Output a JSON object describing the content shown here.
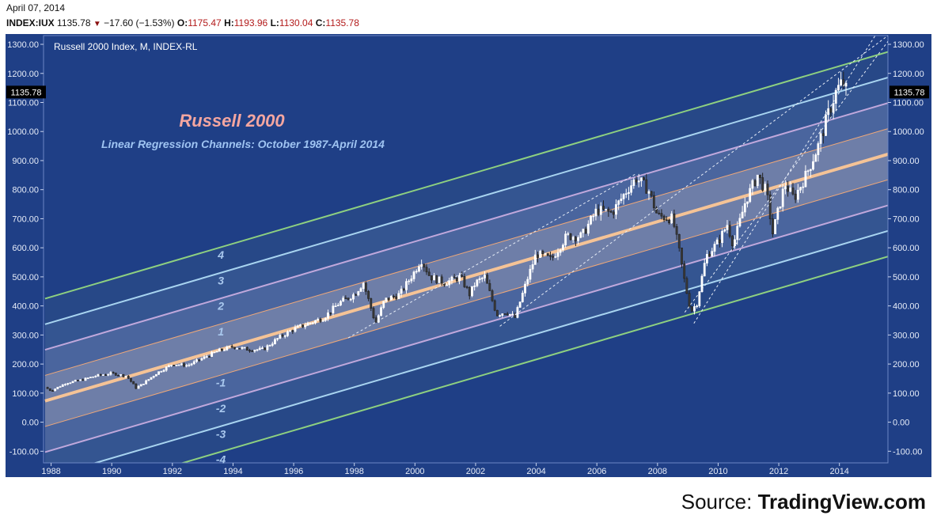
{
  "header": {
    "date": "April 07, 2014",
    "symbol": "INDEX:IUX",
    "last": "1135.78",
    "change": "−17.60 (−1.53%)",
    "o_label": "O:",
    "o_value": "1175.47",
    "h_label": "H:",
    "h_value": "1193.96",
    "l_label": "L:",
    "l_value": "1130.04",
    "c_label": "C:",
    "c_value": "1135.78"
  },
  "source": {
    "label": "Source:",
    "site": "TradingView.com"
  },
  "colors": {
    "background": "#1f3f86",
    "midline": "#f5c396",
    "band1": "#f0a878",
    "band2": "#c0a8dc",
    "band3": "#a8d4f0",
    "band4": "#8ed080",
    "price_badge": "#000000"
  },
  "chart_data": {
    "type": "candlestick",
    "title": "Russell 2000",
    "subtitle": "Linear Regression Channels: October 1987-April 2014",
    "panel_title": "Russell 2000 Index, M, INDEX-RL",
    "x_ticks": [
      "1988",
      "1990",
      "1992",
      "1994",
      "1996",
      "1998",
      "2000",
      "2002",
      "2004",
      "2006",
      "2008",
      "2010",
      "2012",
      "2014"
    ],
    "y_ticks": [
      "1300.00",
      "1200.00",
      "1100.00",
      "1000.00",
      "900.00",
      "800.00",
      "700.00",
      "600.00",
      "500.00",
      "400.00",
      "300.00",
      "200.00",
      "100.00",
      "0.00",
      "-100.00"
    ],
    "ylim": [
      -140,
      1330
    ],
    "xlim": [
      1987.75,
      2015.6
    ],
    "last_price_label": "1135.78",
    "regression": {
      "start_year": 1987.8,
      "start_value": 73,
      "end_year": 2015.6,
      "end_value": 922,
      "band_step": 88
    },
    "band_labels": [
      "4",
      "3",
      "2",
      "1",
      "-1",
      "-2",
      "-3",
      "-4"
    ],
    "closes": [
      {
        "t": 1987.8,
        "v": 120
      },
      {
        "t": 1988.0,
        "v": 108
      },
      {
        "t": 1988.5,
        "v": 135
      },
      {
        "t": 1989.0,
        "v": 145
      },
      {
        "t": 1989.5,
        "v": 160
      },
      {
        "t": 1990.0,
        "v": 168
      },
      {
        "t": 1990.5,
        "v": 158
      },
      {
        "t": 1990.8,
        "v": 118
      },
      {
        "t": 1991.0,
        "v": 130
      },
      {
        "t": 1991.5,
        "v": 170
      },
      {
        "t": 1992.0,
        "v": 200
      },
      {
        "t": 1992.5,
        "v": 195
      },
      {
        "t": 1993.0,
        "v": 220
      },
      {
        "t": 1993.5,
        "v": 245
      },
      {
        "t": 1994.0,
        "v": 260
      },
      {
        "t": 1994.5,
        "v": 250
      },
      {
        "t": 1995.0,
        "v": 250
      },
      {
        "t": 1995.5,
        "v": 290
      },
      {
        "t": 1996.0,
        "v": 320
      },
      {
        "t": 1996.5,
        "v": 340
      },
      {
        "t": 1997.0,
        "v": 360
      },
      {
        "t": 1997.5,
        "v": 410
      },
      {
        "t": 1998.0,
        "v": 440
      },
      {
        "t": 1998.3,
        "v": 480
      },
      {
        "t": 1998.7,
        "v": 340
      },
      {
        "t": 1999.0,
        "v": 420
      },
      {
        "t": 1999.5,
        "v": 440
      },
      {
        "t": 2000.0,
        "v": 520
      },
      {
        "t": 2000.2,
        "v": 560
      },
      {
        "t": 2000.5,
        "v": 500
      },
      {
        "t": 2001.0,
        "v": 480
      },
      {
        "t": 2001.5,
        "v": 500
      },
      {
        "t": 2001.8,
        "v": 440
      },
      {
        "t": 2002.0,
        "v": 480
      },
      {
        "t": 2002.3,
        "v": 500
      },
      {
        "t": 2002.7,
        "v": 370
      },
      {
        "t": 2003.0,
        "v": 380
      },
      {
        "t": 2003.3,
        "v": 360
      },
      {
        "t": 2003.7,
        "v": 490
      },
      {
        "t": 2004.0,
        "v": 580
      },
      {
        "t": 2004.5,
        "v": 560
      },
      {
        "t": 2005.0,
        "v": 640
      },
      {
        "t": 2005.5,
        "v": 640
      },
      {
        "t": 2006.0,
        "v": 730
      },
      {
        "t": 2006.5,
        "v": 720
      },
      {
        "t": 2007.0,
        "v": 800
      },
      {
        "t": 2007.3,
        "v": 840
      },
      {
        "t": 2007.7,
        "v": 800
      },
      {
        "t": 2008.0,
        "v": 710
      },
      {
        "t": 2008.5,
        "v": 700
      },
      {
        "t": 2008.75,
        "v": 570
      },
      {
        "t": 2008.9,
        "v": 480
      },
      {
        "t": 2009.1,
        "v": 380
      },
      {
        "t": 2009.3,
        "v": 410
      },
      {
        "t": 2009.6,
        "v": 570
      },
      {
        "t": 2010.0,
        "v": 620
      },
      {
        "t": 2010.3,
        "v": 680
      },
      {
        "t": 2010.5,
        "v": 610
      },
      {
        "t": 2010.9,
        "v": 760
      },
      {
        "t": 2011.3,
        "v": 850
      },
      {
        "t": 2011.6,
        "v": 790
      },
      {
        "t": 2011.8,
        "v": 650
      },
      {
        "t": 2012.2,
        "v": 820
      },
      {
        "t": 2012.5,
        "v": 770
      },
      {
        "t": 2012.9,
        "v": 850
      },
      {
        "t": 2013.3,
        "v": 950
      },
      {
        "t": 2013.6,
        "v": 1050
      },
      {
        "t": 2013.9,
        "v": 1140
      },
      {
        "t": 2014.1,
        "v": 1170
      },
      {
        "t": 2014.25,
        "v": 1136
      }
    ],
    "trendlines": [
      {
        "t1": 1997.8,
        "v1": 290,
        "t2": 2007.3,
        "v2": 855
      },
      {
        "t1": 2002.8,
        "v1": 330,
        "t2": 2015.6,
        "v2": 1330
      },
      {
        "t1": 2009.2,
        "v1": 340,
        "t2": 2015.3,
        "v2": 1350
      },
      {
        "t1": 2008.9,
        "v1": 378,
        "t2": 2015.6,
        "v2": 1310
      }
    ]
  }
}
